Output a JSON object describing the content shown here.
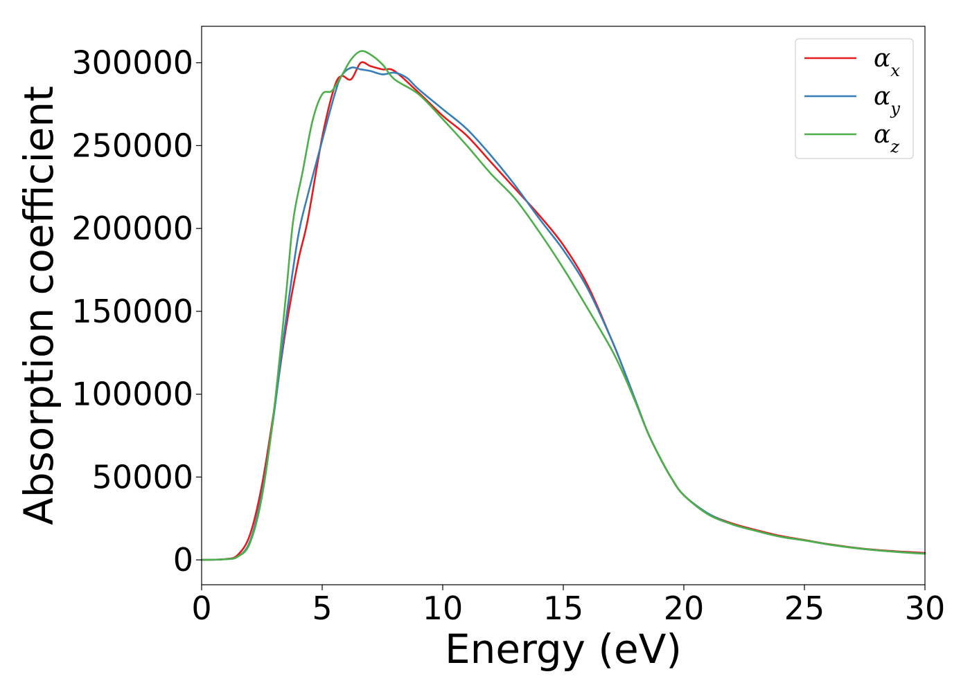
{
  "chart_data": {
    "type": "line",
    "xlabel": "Energy (eV)",
    "ylabel": "Absorption coefficient",
    "xlim": [
      0,
      30
    ],
    "ylim": [
      -15000,
      322000
    ],
    "x_ticks": [
      0,
      5,
      10,
      15,
      20,
      25,
      30
    ],
    "x_tick_labels": [
      "0",
      "5",
      "10",
      "15",
      "20",
      "25",
      "30"
    ],
    "y_ticks": [
      0,
      50000,
      100000,
      150000,
      200000,
      250000,
      300000
    ],
    "y_tick_labels": [
      "0",
      "50000",
      "100000",
      "150000",
      "200000",
      "250000",
      "300000"
    ],
    "grid": false,
    "legend": {
      "placement": "top-right",
      "entries": [
        {
          "symbol": "α",
          "subscript": "x"
        },
        {
          "symbol": "α",
          "subscript": "y"
        },
        {
          "symbol": "α",
          "subscript": "z"
        }
      ]
    },
    "series": [
      {
        "name": "αx",
        "color": "#e41a1c",
        "points": [
          [
            0,
            0
          ],
          [
            1,
            500
          ],
          [
            1.5,
            3000
          ],
          [
            2,
            15000
          ],
          [
            2.5,
            45000
          ],
          [
            3,
            90000
          ],
          [
            3.5,
            140000
          ],
          [
            4,
            180000
          ],
          [
            4.4,
            205000
          ],
          [
            5,
            255000
          ],
          [
            5.5,
            285000
          ],
          [
            5.8,
            292000
          ],
          [
            6.2,
            290000
          ],
          [
            6.6,
            300000
          ],
          [
            7,
            298000
          ],
          [
            7.5,
            296000
          ],
          [
            8,
            295000
          ],
          [
            9,
            282000
          ],
          [
            10,
            268000
          ],
          [
            11,
            256000
          ],
          [
            12,
            240000
          ],
          [
            13,
            224000
          ],
          [
            14,
            208000
          ],
          [
            15,
            190000
          ],
          [
            16,
            166000
          ],
          [
            17,
            133000
          ],
          [
            17.5,
            115000
          ],
          [
            18,
            96000
          ],
          [
            18.5,
            77000
          ],
          [
            19,
            62000
          ],
          [
            19.5,
            49000
          ],
          [
            20,
            39000
          ],
          [
            21,
            28000
          ],
          [
            22,
            22000
          ],
          [
            23,
            18000
          ],
          [
            24,
            14500
          ],
          [
            25,
            12000
          ],
          [
            26,
            9500
          ],
          [
            27,
            7500
          ],
          [
            28,
            6000
          ],
          [
            29,
            5000
          ],
          [
            30,
            4200
          ]
        ]
      },
      {
        "name": "αy",
        "color": "#377eb8",
        "points": [
          [
            0,
            0
          ],
          [
            1,
            400
          ],
          [
            1.5,
            2000
          ],
          [
            2,
            11000
          ],
          [
            2.5,
            40000
          ],
          [
            3,
            88000
          ],
          [
            3.5,
            145000
          ],
          [
            4,
            195000
          ],
          [
            4.4,
            220000
          ],
          [
            5,
            253000
          ],
          [
            5.5,
            280000
          ],
          [
            5.8,
            292000
          ],
          [
            6.2,
            297000
          ],
          [
            6.6,
            296000
          ],
          [
            7,
            295000
          ],
          [
            7.5,
            293000
          ],
          [
            8,
            294000
          ],
          [
            8.5,
            291000
          ],
          [
            9,
            284000
          ],
          [
            10,
            272000
          ],
          [
            11,
            260000
          ],
          [
            12,
            244000
          ],
          [
            13,
            226000
          ],
          [
            14,
            206000
          ],
          [
            15,
            187000
          ],
          [
            16,
            164000
          ],
          [
            17,
            133000
          ],
          [
            17.5,
            115000
          ],
          [
            18,
            96000
          ],
          [
            18.5,
            77000
          ],
          [
            19,
            62000
          ],
          [
            19.5,
            49000
          ],
          [
            20,
            39000
          ],
          [
            21,
            28000
          ],
          [
            22,
            21500
          ],
          [
            23,
            17500
          ],
          [
            24,
            14000
          ],
          [
            25,
            11800
          ],
          [
            26,
            9300
          ],
          [
            27,
            7300
          ],
          [
            28,
            5800
          ],
          [
            29,
            4700
          ],
          [
            30,
            3800
          ]
        ]
      },
      {
        "name": "αz",
        "color": "#4daf4a",
        "points": [
          [
            0,
            0
          ],
          [
            1,
            400
          ],
          [
            1.5,
            2000
          ],
          [
            2,
            10000
          ],
          [
            2.5,
            38000
          ],
          [
            3,
            90000
          ],
          [
            3.5,
            160000
          ],
          [
            3.8,
            205000
          ],
          [
            4.2,
            235000
          ],
          [
            4.6,
            265000
          ],
          [
            5,
            281000
          ],
          [
            5.4,
            283000
          ],
          [
            5.8,
            292000
          ],
          [
            6.2,
            302000
          ],
          [
            6.6,
            307000
          ],
          [
            7,
            305000
          ],
          [
            7.5,
            299000
          ],
          [
            8,
            290000
          ],
          [
            9,
            281000
          ],
          [
            10,
            266000
          ],
          [
            11,
            250000
          ],
          [
            12,
            233000
          ],
          [
            13,
            218000
          ],
          [
            14,
            198000
          ],
          [
            15,
            176000
          ],
          [
            16,
            152000
          ],
          [
            17,
            127000
          ],
          [
            17.5,
            112000
          ],
          [
            18,
            95000
          ],
          [
            18.5,
            77000
          ],
          [
            19,
            62000
          ],
          [
            19.5,
            49000
          ],
          [
            20,
            39000
          ],
          [
            21,
            27500
          ],
          [
            22,
            21500
          ],
          [
            23,
            17500
          ],
          [
            24,
            14000
          ],
          [
            25,
            11800
          ],
          [
            26,
            9300
          ],
          [
            27,
            7300
          ],
          [
            28,
            5800
          ],
          [
            29,
            4600
          ],
          [
            30,
            3700
          ]
        ]
      }
    ]
  }
}
